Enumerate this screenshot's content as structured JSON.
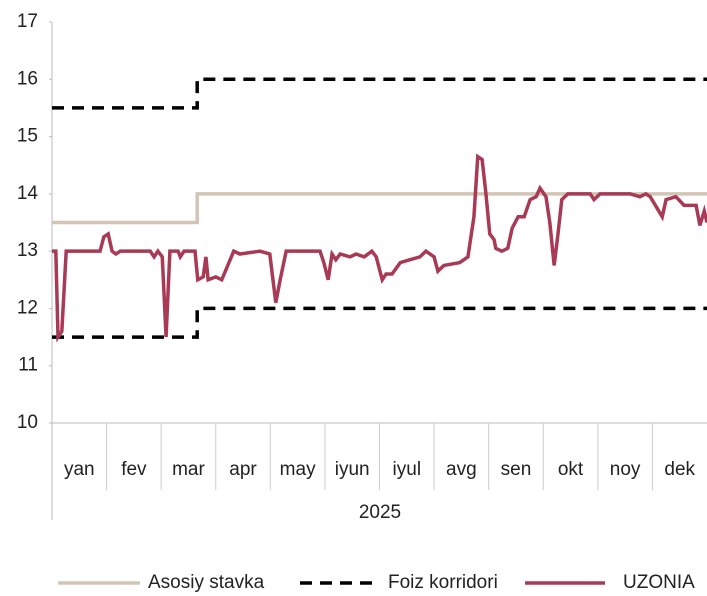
{
  "chart_data": {
    "type": "line",
    "categories": [
      "yan",
      "fev",
      "mar",
      "apr",
      "may",
      "iyun",
      "iyul",
      "avg",
      "sen",
      "okt",
      "noy",
      "dek"
    ],
    "group_label": "2025",
    "xlim": [
      0,
      12
    ],
    "ylim": [
      10,
      17
    ],
    "yticks": [
      10,
      11,
      12,
      13,
      14,
      15,
      16,
      17
    ],
    "series": [
      {
        "name": "Asosiy stavka",
        "color": "#d3c5b5",
        "dash": false,
        "x": [
          0,
          2.66,
          2.66,
          12
        ],
        "values": [
          13.5,
          13.5,
          14,
          14
        ]
      },
      {
        "name": "Foiz korridori",
        "color": "#000000",
        "dash": true,
        "x": [
          0,
          2.66,
          2.66,
          12
        ],
        "values": [
          15.5,
          15.5,
          16,
          16
        ]
      },
      {
        "name": "Foiz korridori",
        "color": "#000000",
        "dash": true,
        "legend": false,
        "x": [
          0,
          2.66,
          2.66,
          12
        ],
        "values": [
          11.5,
          11.5,
          12,
          12
        ]
      },
      {
        "name": "UZONIA",
        "color": "#a83a55",
        "dash": false,
        "x": [
          0,
          0.07,
          0.11,
          0.18,
          0.26,
          0.88,
          0.95,
          1.03,
          1.1,
          1.17,
          1.25,
          1.8,
          1.87,
          1.94,
          2.02,
          2.09,
          2.16,
          2.31,
          2.35,
          2.42,
          2.62,
          2.67,
          2.77,
          2.82,
          2.86,
          3.0,
          3.11,
          3.22,
          3.33,
          3.44,
          3.81,
          3.99,
          4.1,
          4.18,
          4.29,
          4.91,
          4.98,
          5.06,
          5.13,
          5.2,
          5.28,
          5.46,
          5.57,
          5.72,
          5.86,
          5.94,
          6.05,
          6.12,
          6.23,
          6.38,
          6.56,
          6.74,
          6.85,
          7.0,
          7.07,
          7.18,
          7.47,
          7.62,
          7.73,
          7.8,
          7.88,
          7.95,
          8.02,
          8.1,
          8.13,
          8.24,
          8.35,
          8.43,
          8.54,
          8.65,
          8.76,
          8.87,
          8.94,
          9.05,
          9.12,
          9.2,
          9.27,
          9.34,
          9.45,
          9.86,
          9.93,
          10.04,
          10.59,
          10.77,
          10.88,
          10.96,
          11.18,
          11.25,
          11.43,
          11.58,
          11.8,
          11.87,
          11.95,
          12.0
        ],
        "values": [
          13.0,
          13.0,
          11.5,
          11.6,
          13.0,
          13.0,
          13.25,
          13.3,
          13.0,
          12.95,
          13.0,
          13.0,
          12.9,
          13.0,
          12.9,
          11.5,
          13.0,
          13.0,
          12.9,
          13.0,
          13.0,
          12.5,
          12.55,
          12.9,
          12.5,
          12.55,
          12.5,
          12.75,
          13.0,
          12.95,
          13.0,
          12.95,
          12.1,
          12.5,
          13.0,
          13.0,
          12.8,
          12.5,
          12.95,
          12.85,
          12.95,
          12.9,
          12.95,
          12.9,
          13.0,
          12.9,
          12.5,
          12.6,
          12.6,
          12.8,
          12.85,
          12.9,
          13.0,
          12.9,
          12.65,
          12.75,
          12.8,
          12.9,
          13.6,
          14.65,
          14.6,
          14.0,
          13.3,
          13.2,
          13.05,
          13.0,
          13.05,
          13.4,
          13.6,
          13.6,
          13.9,
          13.95,
          14.1,
          13.95,
          13.5,
          12.75,
          13.3,
          13.9,
          14.0,
          14.0,
          13.9,
          14.0,
          14.0,
          13.95,
          14.0,
          13.95,
          13.6,
          13.9,
          13.95,
          13.8,
          13.8,
          13.45,
          13.7,
          13.5
        ]
      }
    ]
  }
}
